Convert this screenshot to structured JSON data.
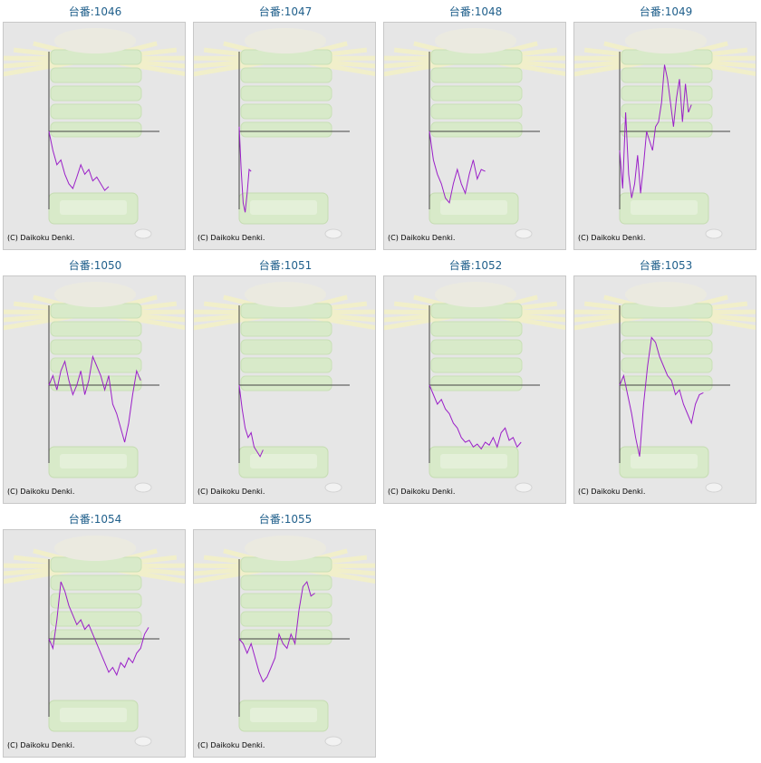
{
  "colors": {
    "title": "#1f5f8b",
    "line": "#9b20c8",
    "axis": "#444444",
    "panel_bg": "#e6e6e6",
    "background_art": "#d9ecc8"
  },
  "icons": {
    "background": "decorative-slot-machine-art-icon"
  },
  "copyright": "(C) Daikoku Denki.",
  "chart_data": [
    {
      "type": "line",
      "title": "台番:1046",
      "x": [
        0,
        4,
        8,
        12,
        16,
        20,
        24,
        28,
        32,
        36,
        40,
        44,
        48,
        52,
        56,
        60
      ],
      "y": [
        0,
        -20,
        -35,
        -30,
        -45,
        -55,
        -60,
        -48,
        -35,
        -45,
        -40,
        -52,
        -48,
        -55,
        -62,
        -58
      ]
    },
    {
      "type": "line",
      "title": "台番:1047",
      "x": [
        0,
        2,
        4,
        6,
        8,
        10,
        12
      ],
      "y": [
        5,
        -40,
        -75,
        -85,
        -65,
        -40,
        -42
      ]
    },
    {
      "type": "line",
      "title": "台番:1048",
      "x": [
        0,
        4,
        8,
        12,
        16,
        20,
        24,
        28,
        32,
        36,
        40,
        44,
        48,
        52,
        56
      ],
      "y": [
        0,
        -30,
        -45,
        -55,
        -70,
        -75,
        -55,
        -40,
        -55,
        -65,
        -45,
        -30,
        -50,
        -40,
        -42
      ]
    },
    {
      "type": "line",
      "title": "台番:1049",
      "x": [
        0,
        3,
        6,
        9,
        12,
        15,
        18,
        21,
        24,
        27,
        30,
        33,
        36,
        39,
        42,
        45,
        48,
        51,
        54,
        57,
        60,
        63,
        66,
        69,
        72
      ],
      "y": [
        -20,
        -60,
        20,
        -45,
        -70,
        -55,
        -25,
        -65,
        -35,
        0,
        -10,
        -20,
        5,
        10,
        30,
        70,
        55,
        30,
        5,
        35,
        55,
        10,
        50,
        20,
        28
      ]
    },
    {
      "type": "line",
      "title": "台番:1050",
      "x": [
        0,
        4,
        8,
        12,
        16,
        20,
        24,
        28,
        32,
        36,
        40,
        44,
        48,
        52,
        56,
        60,
        64,
        68,
        72,
        76,
        80,
        84,
        88,
        92
      ],
      "y": [
        0,
        10,
        -5,
        15,
        25,
        5,
        -10,
        0,
        15,
        -10,
        5,
        30,
        20,
        10,
        -5,
        10,
        -20,
        -30,
        -45,
        -60,
        -40,
        -10,
        15,
        5
      ]
    },
    {
      "type": "line",
      "title": "台番:1051",
      "x": [
        0,
        3,
        6,
        9,
        12,
        15,
        18,
        21,
        24
      ],
      "y": [
        0,
        -25,
        -45,
        -55,
        -50,
        -65,
        -70,
        -75,
        -68
      ]
    },
    {
      "type": "line",
      "title": "台番:1052",
      "x": [
        0,
        4,
        8,
        12,
        16,
        20,
        24,
        28,
        32,
        36,
        40,
        44,
        48,
        52,
        56,
        60,
        64,
        68,
        72,
        76,
        80,
        84,
        88,
        92
      ],
      "y": [
        0,
        -10,
        -20,
        -15,
        -25,
        -30,
        -40,
        -45,
        -55,
        -60,
        -58,
        -65,
        -62,
        -67,
        -60,
        -63,
        -55,
        -65,
        -50,
        -45,
        -58,
        -55,
        -65,
        -60
      ]
    },
    {
      "type": "line",
      "title": "台番:1053",
      "x": [
        0,
        4,
        8,
        12,
        16,
        20,
        24,
        28,
        32,
        36,
        40,
        44,
        48,
        52,
        56,
        60,
        64,
        68,
        72,
        76,
        80,
        84
      ],
      "y": [
        0,
        10,
        -10,
        -30,
        -55,
        -75,
        -20,
        20,
        50,
        45,
        30,
        20,
        10,
        5,
        -10,
        -5,
        -20,
        -30,
        -40,
        -20,
        -10,
        -8
      ]
    },
    {
      "type": "line",
      "title": "台番:1054",
      "x": [
        0,
        4,
        8,
        12,
        16,
        20,
        24,
        28,
        32,
        36,
        40,
        44,
        48,
        52,
        56,
        60,
        64,
        68,
        72,
        76,
        80,
        84,
        88,
        92,
        96,
        100
      ],
      "y": [
        0,
        -10,
        20,
        60,
        50,
        35,
        25,
        15,
        20,
        10,
        15,
        5,
        -5,
        -15,
        -25,
        -35,
        -30,
        -38,
        -25,
        -30,
        -20,
        -25,
        -15,
        -10,
        5,
        12
      ]
    },
    {
      "type": "line",
      "title": "台番:1055",
      "x": [
        0,
        4,
        8,
        12,
        16,
        20,
        24,
        28,
        32,
        36,
        40,
        44,
        48,
        52,
        56,
        60,
        64,
        68,
        72,
        76
      ],
      "y": [
        0,
        -5,
        -15,
        -5,
        -20,
        -35,
        -45,
        -40,
        -30,
        -20,
        5,
        -5,
        -10,
        5,
        -5,
        30,
        55,
        60,
        45,
        48
      ]
    }
  ]
}
